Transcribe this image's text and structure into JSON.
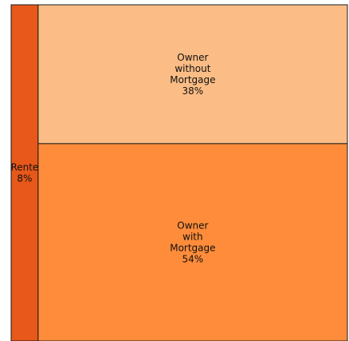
{
  "chart_data": {
    "type": "treemap",
    "title": "",
    "colors": [
      "#ff8c3a",
      "#fbbd85",
      "#e8581a"
    ],
    "items": [
      {
        "label_lines": [
          "Owner",
          "with",
          "Mortgage"
        ],
        "value_label": "54%",
        "value": 54,
        "color": "#ff8c3a"
      },
      {
        "label_lines": [
          "Owner",
          "without",
          "Mortgage"
        ],
        "value_label": "38%",
        "value": 38,
        "color": "#fbbd85"
      },
      {
        "label_lines": [
          "Rente"
        ],
        "value_label": "8%",
        "value": 8,
        "color": "#e8581a"
      }
    ]
  }
}
